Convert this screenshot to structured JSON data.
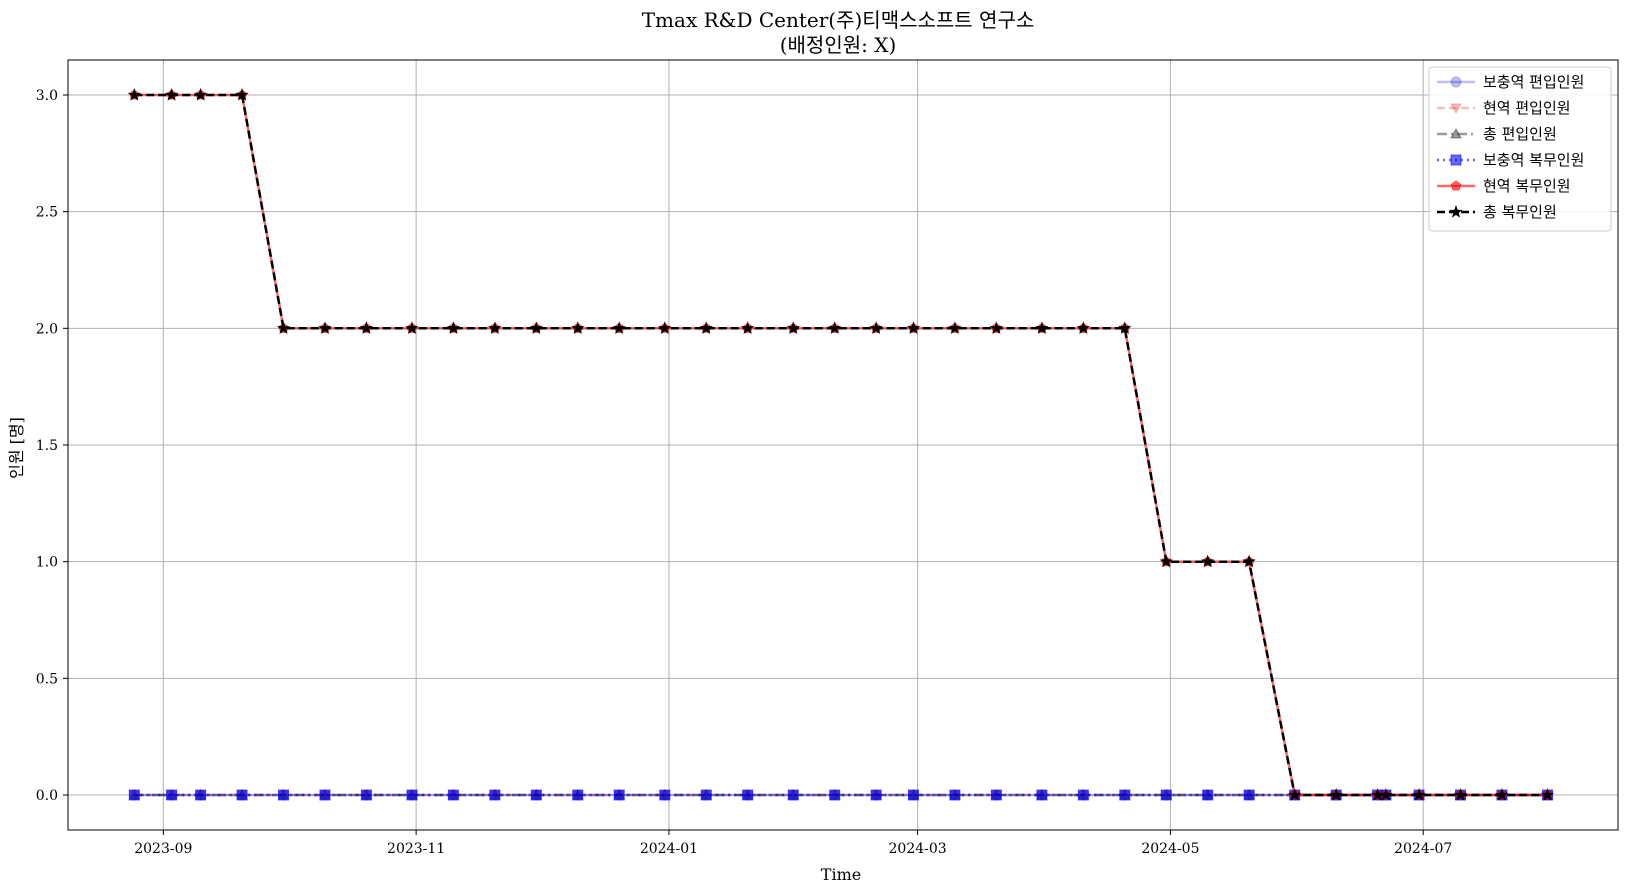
{
  "chart_data": {
    "type": "line",
    "title": "Tmax R&D Center(주)티맥스소프트 연구소",
    "subtitle": "(배정인원: X)",
    "xlabel": "Time",
    "ylabel": "인원 [명]",
    "ylim": [
      -0.15,
      3.15
    ],
    "yticks": [
      0.0,
      0.5,
      1.0,
      1.5,
      2.0,
      2.5,
      3.0
    ],
    "ytick_labels": [
      "0.0",
      "0.5",
      "1.0",
      "1.5",
      "2.0",
      "2.5",
      "3.0"
    ],
    "xlim": [
      "2023-08-09",
      "2024-08-17"
    ],
    "xticks": [
      "2023-09-01",
      "2023-11-01",
      "2024-01-01",
      "2024-03-01",
      "2024-05-01",
      "2024-07-01"
    ],
    "xtick_labels": [
      "2023-09",
      "2023-11",
      "2024-01",
      "2024-03",
      "2024-05",
      "2024-07"
    ],
    "grid": true,
    "legend_position": "top-right",
    "x": [
      "2023-08-25",
      "2023-09-03",
      "2023-09-10",
      "2023-09-20",
      "2023-09-30",
      "2023-10-10",
      "2023-10-20",
      "2023-10-31",
      "2023-11-10",
      "2023-11-20",
      "2023-11-30",
      "2023-12-10",
      "2023-12-20",
      "2023-12-31",
      "2024-01-10",
      "2024-01-20",
      "2024-01-31",
      "2024-02-10",
      "2024-02-20",
      "2024-02-29",
      "2024-03-10",
      "2024-03-20",
      "2024-03-31",
      "2024-04-10",
      "2024-04-20",
      "2024-04-30",
      "2024-05-10",
      "2024-05-20",
      "2024-05-31",
      "2024-06-10",
      "2024-06-20",
      "2024-06-22",
      "2024-06-30",
      "2024-07-10",
      "2024-07-20",
      "2024-07-31"
    ],
    "series": [
      {
        "name": "보충역 편입인원",
        "color": "#0000cc",
        "opacity": 0.25,
        "dash": "",
        "marker": "circle",
        "values": [
          0,
          0,
          0,
          0,
          0,
          0,
          0,
          0,
          0,
          0,
          0,
          0,
          0,
          0,
          0,
          0,
          0,
          0,
          0,
          0,
          0,
          0,
          0,
          0,
          0,
          0,
          0,
          0,
          0,
          0,
          0,
          0,
          0,
          0,
          0,
          0
        ]
      },
      {
        "name": "현역 편입인원",
        "color": "#cc0000",
        "opacity": 0.25,
        "dash": "8,4",
        "marker": "triangle-down",
        "values": [
          0,
          0,
          0,
          0,
          0,
          0,
          0,
          0,
          0,
          0,
          0,
          0,
          0,
          0,
          0,
          0,
          0,
          0,
          0,
          0,
          0,
          0,
          0,
          0,
          0,
          0,
          0,
          0,
          0,
          0,
          0,
          0,
          0,
          0,
          0,
          0
        ]
      },
      {
        "name": "총 편입인원",
        "color": "#000000",
        "opacity": 0.4,
        "dash": "10,4,2,4",
        "marker": "triangle-up",
        "values": [
          0,
          0,
          0,
          0,
          0,
          0,
          0,
          0,
          0,
          0,
          0,
          0,
          0,
          0,
          0,
          0,
          0,
          0,
          0,
          0,
          0,
          0,
          0,
          0,
          0,
          0,
          0,
          0,
          0,
          0,
          0,
          0,
          0,
          0,
          0,
          0
        ]
      },
      {
        "name": "보충역 복무인원",
        "color": "#0000ff",
        "opacity": 0.6,
        "dash": "2,4",
        "marker": "square",
        "values": [
          0,
          0,
          0,
          0,
          0,
          0,
          0,
          0,
          0,
          0,
          0,
          0,
          0,
          0,
          0,
          0,
          0,
          0,
          0,
          0,
          0,
          0,
          0,
          0,
          0,
          0,
          0,
          0,
          0,
          0,
          0,
          0,
          0,
          0,
          0,
          0
        ]
      },
      {
        "name": "현역 복무인원",
        "color": "#ff0000",
        "opacity": 0.6,
        "dash": "",
        "marker": "pentagon",
        "values": [
          3,
          3,
          3,
          3,
          2,
          2,
          2,
          2,
          2,
          2,
          2,
          2,
          2,
          2,
          2,
          2,
          2,
          2,
          2,
          2,
          2,
          2,
          2,
          2,
          2,
          1,
          1,
          1,
          0,
          0,
          0,
          0,
          0,
          0,
          0,
          0
        ]
      },
      {
        "name": "총 복무인원",
        "color": "#000000",
        "opacity": 1.0,
        "dash": "8,4",
        "marker": "star",
        "values": [
          3,
          3,
          3,
          3,
          2,
          2,
          2,
          2,
          2,
          2,
          2,
          2,
          2,
          2,
          2,
          2,
          2,
          2,
          2,
          2,
          2,
          2,
          2,
          2,
          2,
          1,
          1,
          1,
          0,
          0,
          0,
          0,
          0,
          0,
          0,
          0
        ]
      }
    ]
  }
}
